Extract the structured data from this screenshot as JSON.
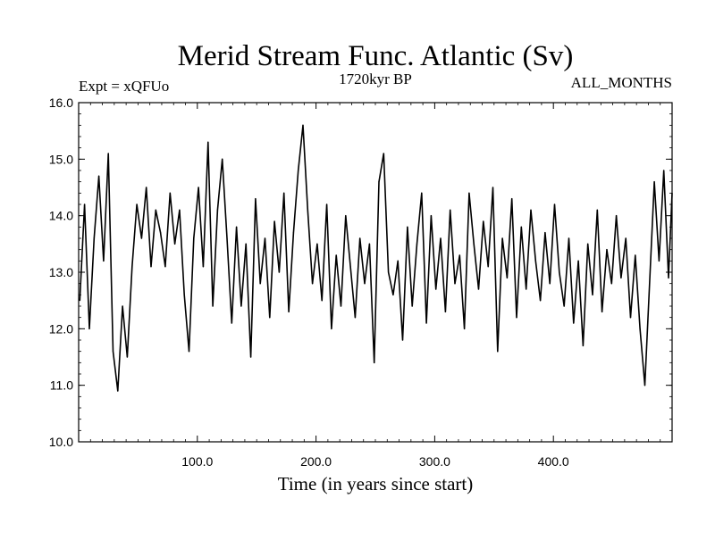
{
  "chart_data": {
    "type": "line",
    "title": "Merid Stream Func. Atlantic (Sv)",
    "subtitle_left": "Expt = xQFUo",
    "subtitle_center": "1720kyr BP",
    "subtitle_right": "ALL_MONTHS",
    "xlabel": "Time (in years since start)",
    "ylabel": "",
    "xlim": [
      0,
      500
    ],
    "ylim": [
      10.0,
      16.0
    ],
    "xticks": [
      100,
      200,
      300,
      400
    ],
    "xtick_labels": [
      "100.0",
      "200.0",
      "300.0",
      "400.0"
    ],
    "yticks": [
      10,
      11,
      12,
      13,
      14,
      15,
      16
    ],
    "ytick_labels": [
      "10.0",
      "11.0",
      "12.0",
      "13.0",
      "14.0",
      "15.0",
      "16.0"
    ],
    "grid": false,
    "line_color": "#000000",
    "series": [
      {
        "name": "Merid Stream Func. Atlantic",
        "x": [
          1,
          5,
          9,
          13,
          17,
          21,
          25,
          29,
          33,
          37,
          41,
          45,
          49,
          53,
          57,
          61,
          65,
          69,
          73,
          77,
          81,
          85,
          89,
          93,
          97,
          101,
          105,
          109,
          113,
          117,
          121,
          125,
          129,
          133,
          137,
          141,
          145,
          149,
          153,
          157,
          161,
          165,
          169,
          173,
          177,
          181,
          185,
          189,
          193,
          197,
          201,
          205,
          209,
          213,
          217,
          221,
          225,
          229,
          233,
          237,
          241,
          245,
          249,
          253,
          257,
          261,
          265,
          269,
          273,
          277,
          281,
          285,
          289,
          293,
          297,
          301,
          305,
          309,
          313,
          317,
          321,
          325,
          329,
          333,
          337,
          341,
          345,
          349,
          353,
          357,
          361,
          365,
          369,
          373,
          377,
          381,
          385,
          389,
          393,
          397,
          401,
          405,
          409,
          413,
          417,
          421,
          425,
          429,
          433,
          437,
          441,
          445,
          449,
          453,
          457,
          461,
          465,
          469,
          473,
          477,
          481,
          485,
          489,
          493,
          497,
          500
        ],
        "values": [
          12.5,
          14.2,
          12.0,
          13.6,
          14.7,
          13.2,
          15.1,
          11.6,
          10.9,
          12.4,
          11.5,
          13.1,
          14.2,
          13.6,
          14.5,
          13.1,
          14.1,
          13.7,
          13.1,
          14.4,
          13.5,
          14.1,
          12.6,
          11.6,
          13.6,
          14.5,
          13.1,
          15.3,
          12.4,
          14.1,
          15.0,
          13.6,
          12.1,
          13.8,
          12.4,
          13.5,
          11.5,
          14.3,
          12.8,
          13.6,
          12.2,
          13.9,
          13.0,
          14.4,
          12.3,
          13.7,
          14.8,
          15.6,
          14.1,
          12.8,
          13.5,
          12.5,
          14.2,
          12.0,
          13.3,
          12.4,
          14.0,
          13.1,
          12.2,
          13.6,
          12.8,
          13.5,
          11.4,
          14.6,
          15.1,
          13.0,
          12.6,
          13.2,
          11.8,
          13.8,
          12.4,
          13.5,
          14.4,
          12.1,
          14.0,
          12.7,
          13.6,
          12.3,
          14.1,
          12.8,
          13.3,
          12.0,
          14.4,
          13.5,
          12.7,
          13.9,
          13.1,
          14.5,
          11.6,
          13.6,
          12.9,
          14.3,
          12.2,
          13.8,
          12.7,
          14.1,
          13.2,
          12.5,
          13.7,
          12.8,
          14.2,
          13.0,
          12.4,
          13.6,
          12.1,
          13.2,
          11.7,
          13.5,
          12.6,
          14.1,
          12.3,
          13.4,
          12.8,
          14.0,
          12.9,
          13.6,
          12.2,
          13.3,
          12.0,
          11.0,
          12.8,
          14.6,
          13.2,
          14.8,
          12.9,
          14.4
        ]
      }
    ]
  }
}
